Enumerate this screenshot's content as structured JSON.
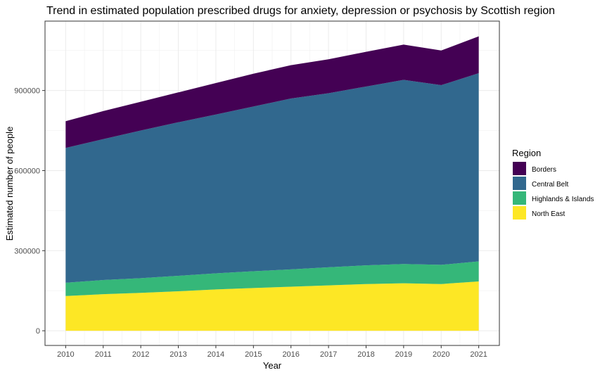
{
  "chart_data": {
    "type": "area",
    "stacked": true,
    "title": "Trend in estimated population prescribed drugs for anxiety, depression or psychosis by Scottish region",
    "xlabel": "Year",
    "ylabel": "Estimated number of people",
    "x": [
      2010,
      2011,
      2012,
      2013,
      2014,
      2015,
      2016,
      2017,
      2018,
      2019,
      2020,
      2021
    ],
    "x_tick_labels": [
      "2010",
      "2011",
      "2012",
      "2013",
      "2014",
      "2015",
      "2016",
      "2017",
      "2018",
      "2019",
      "2020",
      "2021"
    ],
    "y_ticks": [
      0,
      300000,
      600000,
      900000
    ],
    "y_tick_labels": [
      "0",
      "300000",
      "600000",
      "900000"
    ],
    "xlim": [
      2009.45,
      2021.55
    ],
    "ylim": [
      -55000,
      1160000
    ],
    "grid": true,
    "legend_position": "right",
    "legend_title": "Region",
    "series": [
      {
        "name": "North East",
        "color": "#FDE725",
        "values": [
          130000,
          137000,
          142000,
          148000,
          155000,
          160000,
          165000,
          170000,
          175000,
          178000,
          175000,
          185000
        ]
      },
      {
        "name": "Highlands & Islands",
        "color": "#35B779",
        "values": [
          50000,
          53000,
          55000,
          58000,
          60000,
          63000,
          65000,
          68000,
          70000,
          72000,
          72000,
          75000
        ]
      },
      {
        "name": "Central Belt",
        "color": "#31688E",
        "values": [
          505000,
          528000,
          553000,
          575000,
          595000,
          617000,
          640000,
          652000,
          670000,
          690000,
          673000,
          705000
        ]
      },
      {
        "name": "Borders",
        "color": "#440154",
        "values": [
          100000,
          105000,
          108000,
          112000,
          118000,
          123000,
          125000,
          127000,
          130000,
          132000,
          130000,
          138000
        ]
      }
    ],
    "legend_order": [
      "Borders",
      "Central Belt",
      "Highlands & Islands",
      "North East"
    ]
  }
}
